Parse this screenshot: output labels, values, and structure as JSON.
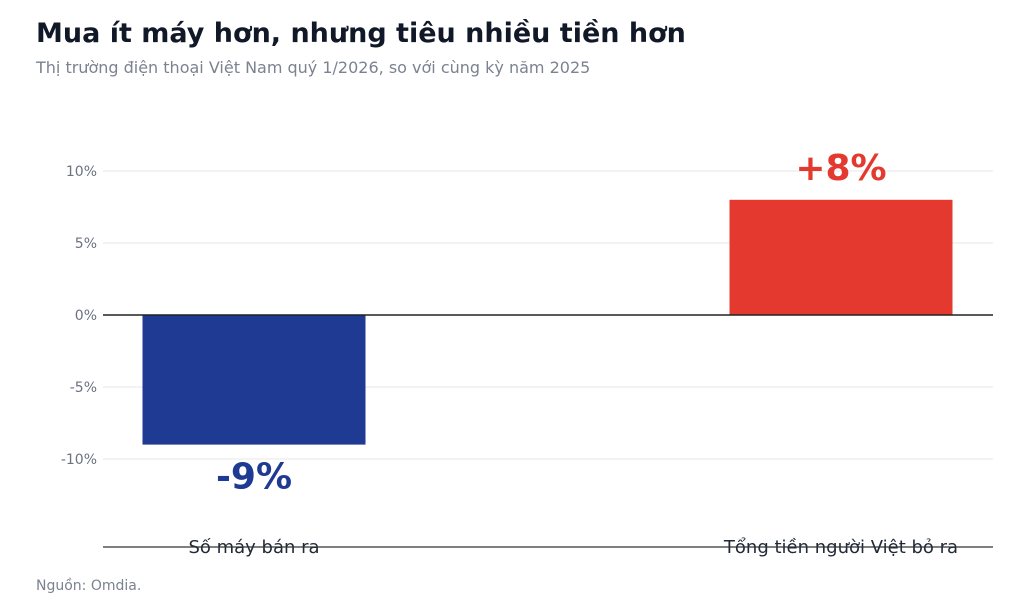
{
  "title": "Mua ít máy hơn, nhưng tiêu nhiều tiền hơn",
  "subtitle": "Thị trường điện thoại Việt Nam quý 1/2026, so với cùng kỳ năm 2025",
  "source": "Nguồn: Omdia.",
  "chart_data": {
    "type": "bar",
    "categories": [
      "Số máy bán ra",
      "Tổng tiền người Việt bỏ ra"
    ],
    "values": [
      -9,
      8
    ],
    "data_labels": [
      "-9%",
      "+8%"
    ],
    "colors": [
      "#1f3a93",
      "#e3392e"
    ],
    "yticks": [
      10,
      5,
      0,
      -5,
      -10
    ],
    "ytick_labels": [
      "10%",
      "5%",
      "0%",
      "-5%",
      "-10%"
    ],
    "ylim": [
      -15,
      11
    ],
    "grid": true
  }
}
